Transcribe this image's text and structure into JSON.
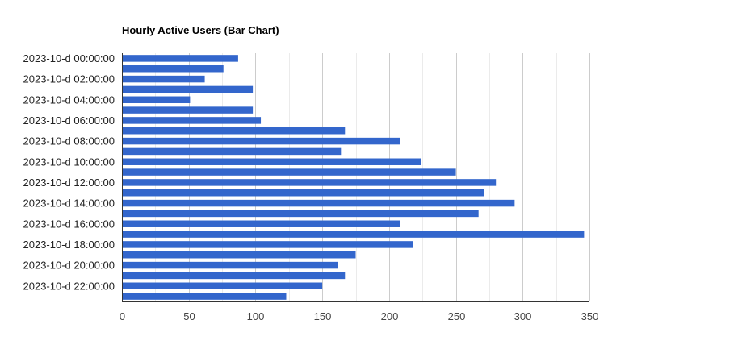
{
  "chart_data": {
    "type": "bar",
    "orientation": "horizontal",
    "title": "Hourly Active Users (Bar Chart)",
    "xlabel": "",
    "ylabel": "",
    "xlim": [
      0,
      350
    ],
    "x_ticks": [
      0,
      50,
      100,
      150,
      200,
      250,
      300,
      350
    ],
    "grid": true,
    "legend": "none",
    "bar_color": "#3366cc",
    "categories": [
      "2023-10-d 00:00:00",
      "2023-10-d 01:00:00",
      "2023-10-d 02:00:00",
      "2023-10-d 03:00:00",
      "2023-10-d 04:00:00",
      "2023-10-d 05:00:00",
      "2023-10-d 06:00:00",
      "2023-10-d 07:00:00",
      "2023-10-d 08:00:00",
      "2023-10-d 09:00:00",
      "2023-10-d 10:00:00",
      "2023-10-d 11:00:00",
      "2023-10-d 12:00:00",
      "2023-10-d 13:00:00",
      "2023-10-d 14:00:00",
      "2023-10-d 15:00:00",
      "2023-10-d 16:00:00",
      "2023-10-d 17:00:00",
      "2023-10-d 18:00:00",
      "2023-10-d 19:00:00",
      "2023-10-d 20:00:00",
      "2023-10-d 21:00:00",
      "2023-10-d 22:00:00",
      "2023-10-d 23:00:00"
    ],
    "visible_category_labels": [
      "2023-10-d 00:00:00",
      "2023-10-d 02:00:00",
      "2023-10-d 04:00:00",
      "2023-10-d 06:00:00",
      "2023-10-d 08:00:00",
      "2023-10-d 10:00:00",
      "2023-10-d 12:00:00",
      "2023-10-d 14:00:00",
      "2023-10-d 16:00:00",
      "2023-10-d 18:00:00",
      "2023-10-d 20:00:00",
      "2023-10-d 22:00:00"
    ],
    "values": [
      87,
      76,
      62,
      98,
      51,
      98,
      104,
      167,
      208,
      164,
      224,
      250,
      280,
      271,
      294,
      267,
      208,
      346,
      218,
      175,
      162,
      167,
      150,
      123
    ]
  }
}
